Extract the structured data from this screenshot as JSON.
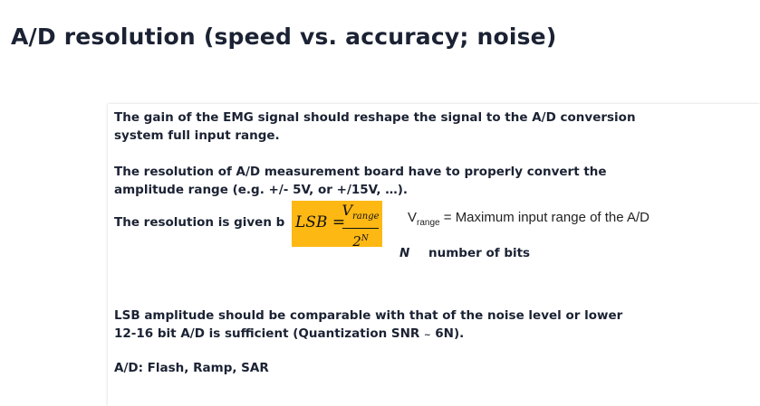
{
  "slide": {
    "title": "A/D resolution (speed vs. accuracy; noise)",
    "para1": {
      "line1": "The gain of the EMG signal should reshape the signal to the A/D conversion",
      "line2": "system full input range."
    },
    "para2": {
      "line1": "The resolution of A/D measurement board have to properly convert the",
      "line2": "amplitude range (e.g. +/- 5V, or +/15V, …)."
    },
    "para3": "The resolution is given b",
    "formula": {
      "lhs": "LSB =",
      "num_var": "V",
      "num_sub": "range",
      "den_base": "2",
      "den_exp": "N"
    },
    "vrange": {
      "var": "V",
      "sub": "range",
      "text": " = Maximum input range of the A/D"
    },
    "nbits": {
      "var": "N",
      "text": "number of bits"
    },
    "para4": {
      "line1": "LSB amplitude should be comparable with that of the noise level or lower",
      "line2_a": "12-16 bit A/D is sufficient (Quantization SNR ",
      "line2_tilde": "~",
      "line2_b": " 6N)."
    },
    "para5": "A/D: Flash, Ramp, SAR"
  }
}
